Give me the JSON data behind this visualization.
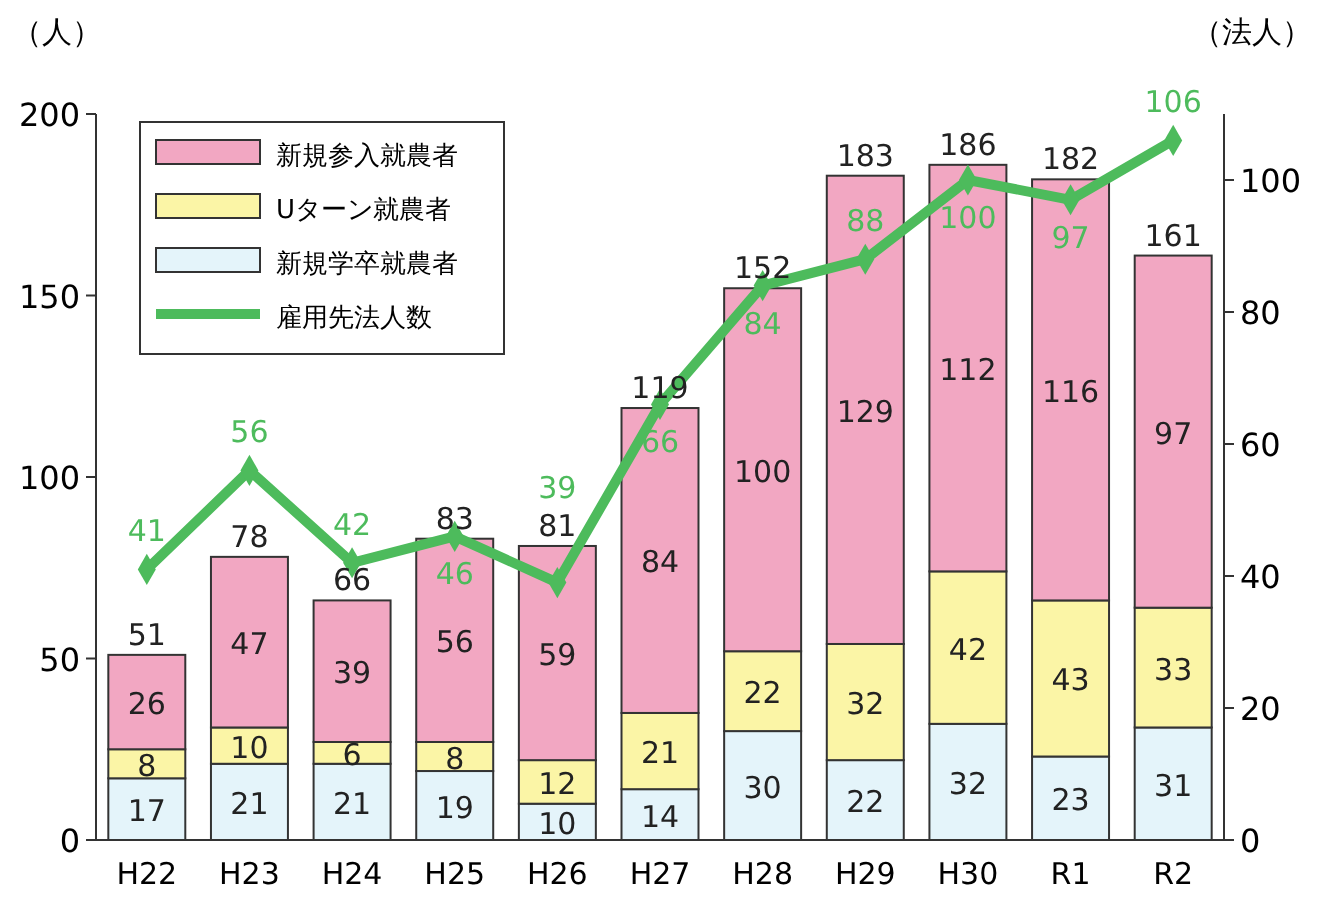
{
  "chart_data": {
    "type": "bar",
    "stacked": true,
    "ylabel": "（人）",
    "y2label": "（法人）",
    "categories": [
      "H22",
      "H23",
      "H24",
      "H25",
      "H26",
      "H27",
      "H28",
      "H29",
      "H30",
      "R1",
      "R2"
    ],
    "series": [
      {
        "name": "新規学卒就農者",
        "color": "#e4f4fa",
        "values": [
          17,
          21,
          21,
          19,
          10,
          14,
          30,
          22,
          32,
          23,
          31
        ]
      },
      {
        "name": "Uターン就農者",
        "color": "#fbf5a6",
        "values": [
          8,
          10,
          6,
          8,
          12,
          21,
          22,
          32,
          42,
          43,
          33
        ]
      },
      {
        "name": "新規参入就農者",
        "color": "#f2a7c2",
        "values": [
          26,
          47,
          39,
          56,
          59,
          84,
          100,
          129,
          112,
          116,
          97
        ]
      },
      {
        "name": "雇用先法人数",
        "type": "line",
        "axis": "y2",
        "color": "#4dbb5c",
        "values": [
          41,
          56,
          42,
          46,
          39,
          66,
          84,
          88,
          100,
          97,
          106
        ]
      }
    ],
    "totals": [
      "51",
      "78",
      "66",
      "83",
      "81",
      "119",
      "152",
      "183",
      "186",
      "182",
      "161"
    ],
    "data_labels": true,
    "marker": "diamond",
    "legend": "top left",
    "ylim": [
      0,
      200
    ],
    "yticks": [
      0,
      50,
      100,
      150,
      200
    ],
    "y2lim": [
      0,
      110
    ],
    "y2ticks": [
      0,
      20,
      40,
      60,
      80,
      100
    ]
  }
}
